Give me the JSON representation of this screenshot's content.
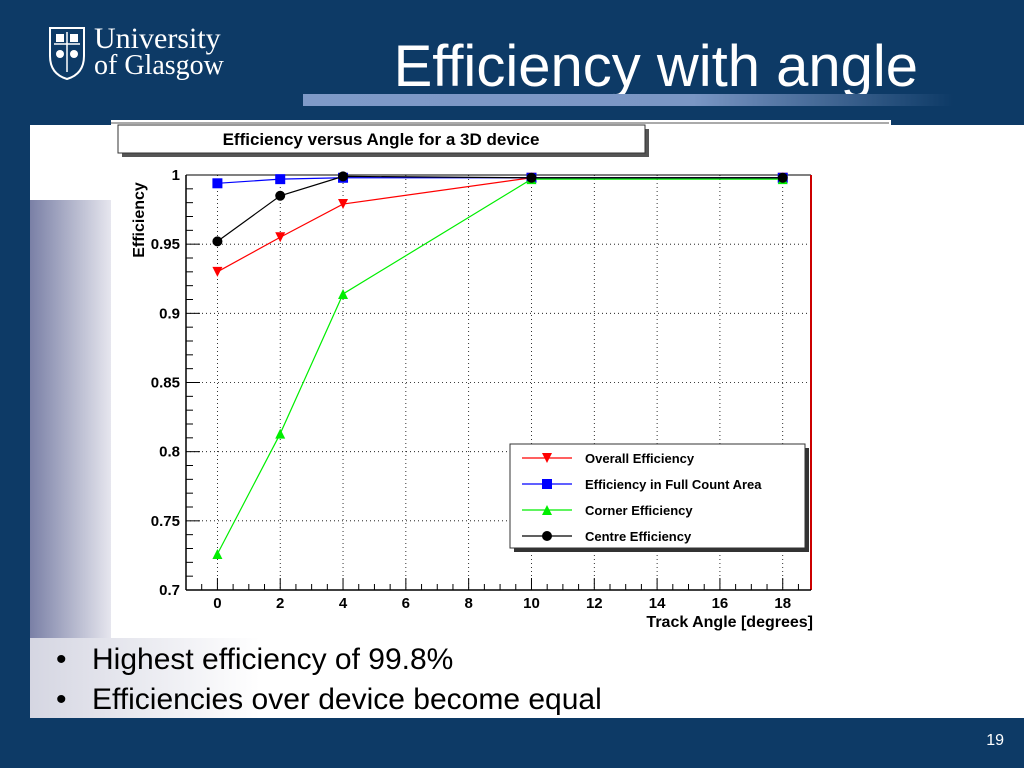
{
  "slide": {
    "title": "Efficiency with angle",
    "logo_line1": "University",
    "logo_line2": "of Glasgow",
    "bullets": [
      "Highest efficiency of 99.8%",
      "Efficiencies over device become equal"
    ],
    "page_number": "19",
    "colors": {
      "background": "#0d3a66",
      "accent_bar": "#7a96c4",
      "content": "#ffffff"
    }
  },
  "chart_data": {
    "type": "line",
    "title": "Efficiency versus Angle for a 3D device",
    "xlabel": "Track Angle [degrees]",
    "ylabel": "Efficiency",
    "xlim": [
      -1,
      18.9
    ],
    "ylim": [
      0.7,
      1.0
    ],
    "x_ticks": [
      0,
      2,
      4,
      6,
      8,
      10,
      12,
      14,
      16,
      18
    ],
    "y_ticks": [
      0.7,
      0.75,
      0.8,
      0.85,
      0.9,
      0.95,
      1
    ],
    "y_tick_labels": [
      "0.7",
      "0.75",
      "0.8",
      "0.85",
      "0.9",
      "0.95",
      "1"
    ],
    "grid": true,
    "legend_position": "bottom-right",
    "x": [
      0,
      2,
      4,
      10,
      18
    ],
    "series": [
      {
        "name": "Overall Efficiency",
        "color": "#ff0000",
        "marker": "triangle-down",
        "values": [
          0.93,
          0.955,
          0.979,
          0.998,
          0.998
        ]
      },
      {
        "name": "Efficiency in Full Count Area",
        "color": "#0000ff",
        "marker": "square",
        "values": [
          0.994,
          0.997,
          0.998,
          0.998,
          0.998
        ]
      },
      {
        "name": "Corner Efficiency",
        "color": "#00ee00",
        "marker": "triangle-up",
        "values": [
          0.726,
          0.813,
          0.914,
          0.997,
          0.997
        ]
      },
      {
        "name": "Centre Efficiency",
        "color": "#000000",
        "marker": "circle",
        "values": [
          0.952,
          0.985,
          0.999,
          0.998,
          0.998
        ]
      }
    ]
  }
}
